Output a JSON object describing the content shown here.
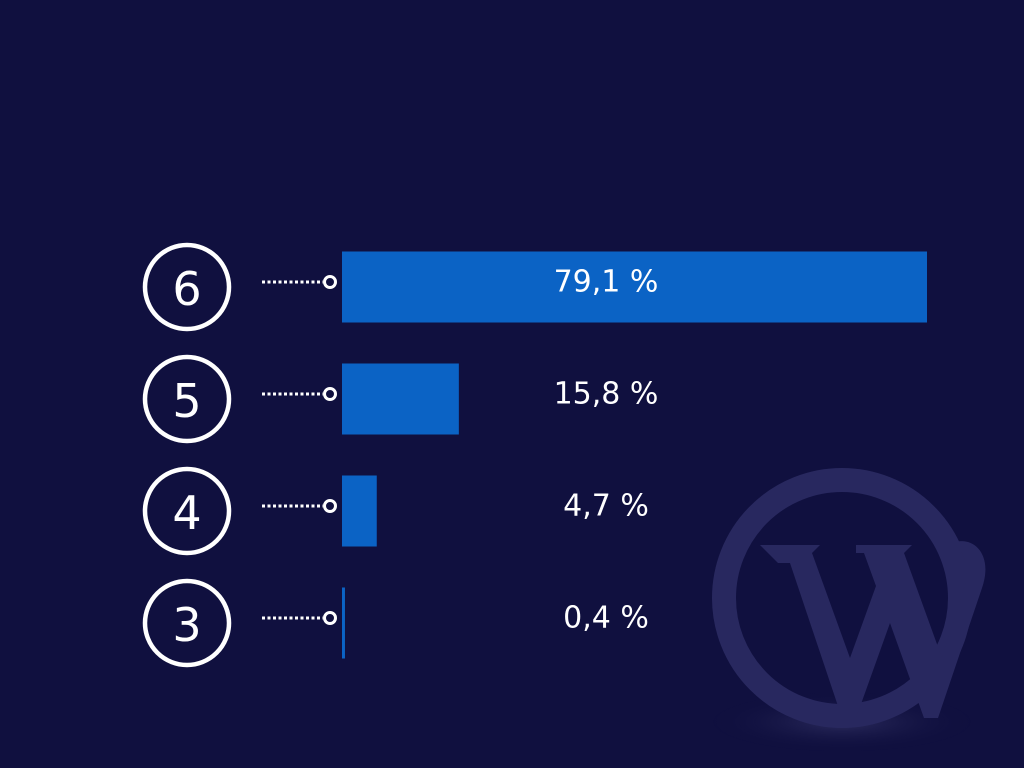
{
  "chart_data": {
    "type": "bar",
    "orientation": "horizontal",
    "categories": [
      "6",
      "5",
      "4",
      "3"
    ],
    "values": [
      79.1,
      15.8,
      4.7,
      0.4
    ],
    "value_labels": [
      "79,1 %",
      "15,8 %",
      "4,7 %",
      "0,4 %"
    ],
    "color": "#0b63c5"
  }
}
